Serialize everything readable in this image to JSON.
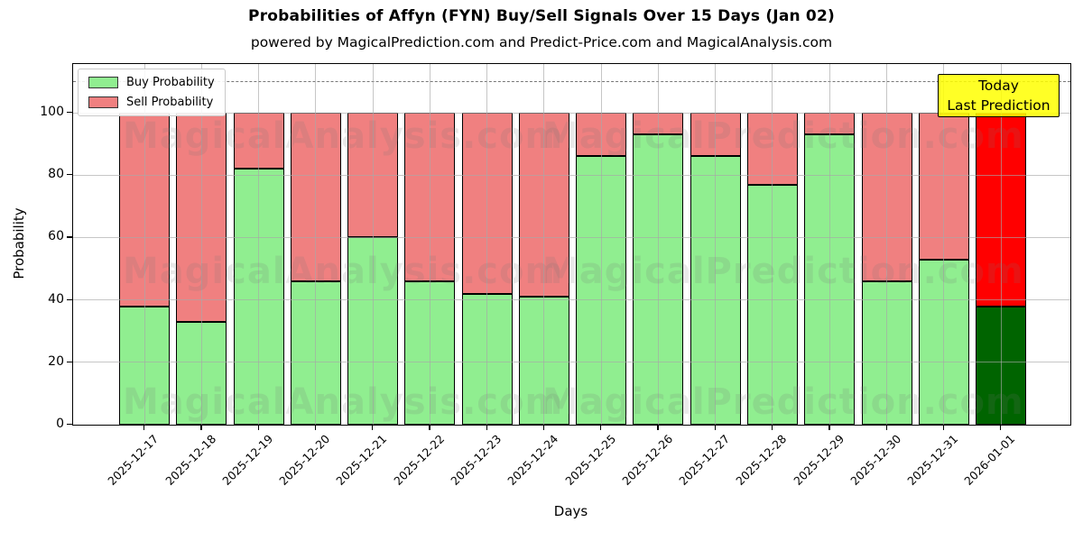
{
  "title": "Probabilities of Affyn (FYN) Buy/Sell Signals Over 15 Days (Jan 02)",
  "subtitle": "powered by MagicalPrediction.com and Predict-Price.com and MagicalAnalysis.com",
  "axes": {
    "ylabel": "Probability",
    "xlabel": "Days",
    "yticks": [
      0,
      20,
      40,
      60,
      80,
      100
    ]
  },
  "legend": {
    "items": [
      {
        "label": "Buy Probability",
        "color": "#90ee90"
      },
      {
        "label": "Sell Probability",
        "color": "#f08080"
      }
    ]
  },
  "annotation": {
    "line1": "Today",
    "line2": "Last Prediction",
    "bg_color": "#ffff00"
  },
  "watermarks": [
    "MagicalAnalysis.com",
    "MagicalPrediction.com"
  ],
  "chart_data": {
    "type": "bar",
    "stacked": true,
    "title": "Probabilities of Affyn (FYN) Buy/Sell Signals Over 15 Days (Jan 02)",
    "xlabel": "Days",
    "ylabel": "Probability",
    "ylim": [
      0,
      115.6
    ],
    "grid": true,
    "legend_position": "upper left",
    "dashed_line_y": 110,
    "categories": [
      "2025-12-17",
      "2025-12-18",
      "2025-12-19",
      "2025-12-20",
      "2025-12-21",
      "2025-12-22",
      "2025-12-23",
      "2025-12-24",
      "2025-12-25",
      "2025-12-26",
      "2025-12-27",
      "2025-12-28",
      "2025-12-29",
      "2025-12-30",
      "2025-12-31",
      "2026-01-01"
    ],
    "series": [
      {
        "name": "Buy Probability",
        "color": "#90ee90",
        "values": [
          38,
          33,
          82,
          46,
          60,
          46,
          42,
          41,
          86,
          93,
          86,
          77,
          93,
          46,
          53,
          38
        ]
      },
      {
        "name": "Sell Probability",
        "color": "#f08080",
        "values": [
          62,
          67,
          18,
          54,
          40,
          54,
          58,
          59,
          14,
          7,
          14,
          23,
          7,
          54,
          47,
          62
        ]
      }
    ],
    "last_bar_highlight": {
      "buy_color": "#006400",
      "sell_color": "#ff0000"
    }
  }
}
